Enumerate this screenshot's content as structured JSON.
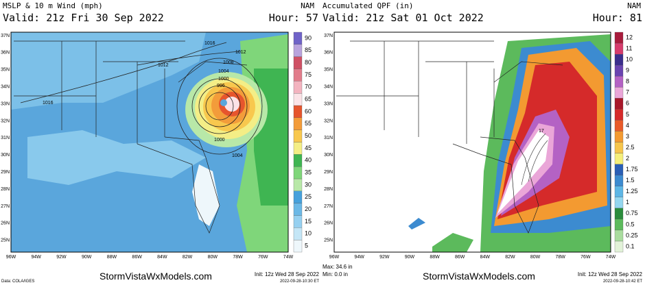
{
  "left": {
    "title": "MSLP & 10 m Wind (mph)",
    "model": "NAM",
    "valid": "Valid: 21z Fri 30 Sep 2022",
    "hour": "Hour: 57",
    "lat_labels": [
      "37N",
      "36N",
      "35N",
      "34N",
      "33N",
      "32N",
      "31N",
      "30N",
      "29N",
      "28N",
      "27N",
      "26N",
      "25N"
    ],
    "lon_labels": [
      "96W",
      "94W",
      "92W",
      "90W",
      "88W",
      "86W",
      "84W",
      "82W",
      "80W",
      "78W",
      "76W",
      "74W"
    ],
    "colorbar": [
      {
        "label": "5",
        "color": "#eef7fb"
      },
      {
        "label": "10",
        "color": "#c4e6f6"
      },
      {
        "label": "15",
        "color": "#96d0f0"
      },
      {
        "label": "20",
        "color": "#6bb8e6"
      },
      {
        "label": "25",
        "color": "#46a1dc"
      },
      {
        "label": "30",
        "color": "#b8e8a8"
      },
      {
        "label": "35",
        "color": "#7fd67a"
      },
      {
        "label": "40",
        "color": "#3fb552"
      },
      {
        "label": "45",
        "color": "#f4ee86"
      },
      {
        "label": "50",
        "color": "#f8c84e"
      },
      {
        "label": "55",
        "color": "#f39c3a"
      },
      {
        "label": "60",
        "color": "#e6552d"
      },
      {
        "label": "65",
        "color": "#fbe3e7"
      },
      {
        "label": "70",
        "color": "#f3b3bf"
      },
      {
        "label": "75",
        "color": "#e27c8b"
      },
      {
        "label": "80",
        "color": "#cf5064"
      },
      {
        "label": "85",
        "color": "#b9a3dd"
      },
      {
        "label": "90",
        "color": "#6f63c8"
      }
    ],
    "contour_labels": [
      "1016",
      "1012",
      "1012",
      "1008",
      "1004",
      "1000",
      "996",
      "1000",
      "1004",
      "1016"
    ],
    "init": "Init: 12z Wed 28 Sep 2022",
    "timestamp": "2022-09-28-10:30 ET",
    "brand": "StormVistaWxModels.com",
    "credit": "Data: COLA/IGES"
  },
  "right": {
    "title": "Accumulated QPF (in)",
    "model": "NAM",
    "valid": "Valid: 21z Sat 01 Oct 2022",
    "hour": "Hour: 81",
    "lat_labels": [
      "37N",
      "36N",
      "35N",
      "34N",
      "33N",
      "32N",
      "31N",
      "30N",
      "29N",
      "28N",
      "27N",
      "26N",
      "25N"
    ],
    "lon_labels": [
      "96W",
      "94W",
      "92W",
      "90W",
      "88W",
      "86W",
      "84W",
      "82W",
      "80W",
      "78W",
      "76W",
      "74W"
    ],
    "colorbar": [
      {
        "label": "0.1",
        "color": "#e2f2d8"
      },
      {
        "label": "0.25",
        "color": "#a9dc9e"
      },
      {
        "label": "0.5",
        "color": "#5cba5c"
      },
      {
        "label": "0.75",
        "color": "#2b8c3c"
      },
      {
        "label": "1",
        "color": "#94d6ef"
      },
      {
        "label": "1.25",
        "color": "#5db6e5"
      },
      {
        "label": "1.5",
        "color": "#3c8bd0"
      },
      {
        "label": "1.75",
        "color": "#2a5fb6"
      },
      {
        "label": "2",
        "color": "#f5ef7a"
      },
      {
        "label": "2.5",
        "color": "#f6c54c"
      },
      {
        "label": "3",
        "color": "#f39a31"
      },
      {
        "label": "4",
        "color": "#e95b2a"
      },
      {
        "label": "5",
        "color": "#d52a2a"
      },
      {
        "label": "6",
        "color": "#a8182a"
      },
      {
        "label": "7",
        "color": "#eaa6d8"
      },
      {
        "label": "8",
        "color": "#b462c4"
      },
      {
        "label": "9",
        "color": "#6a44b0"
      },
      {
        "label": "10",
        "color": "#3b2e8c"
      },
      {
        "label": "11",
        "color": "#d63c6c"
      },
      {
        "label": "12",
        "color": "#a81c3c"
      }
    ],
    "contour_labels": [
      "17"
    ],
    "max": "Max: 34.6 in",
    "min": "Min: 0.0 in",
    "brand": "StormVistaWxModels.com",
    "init": "Init: 12z Wed 28 Sep 2022",
    "timestamp": "2022-09-28-10:42 ET"
  }
}
